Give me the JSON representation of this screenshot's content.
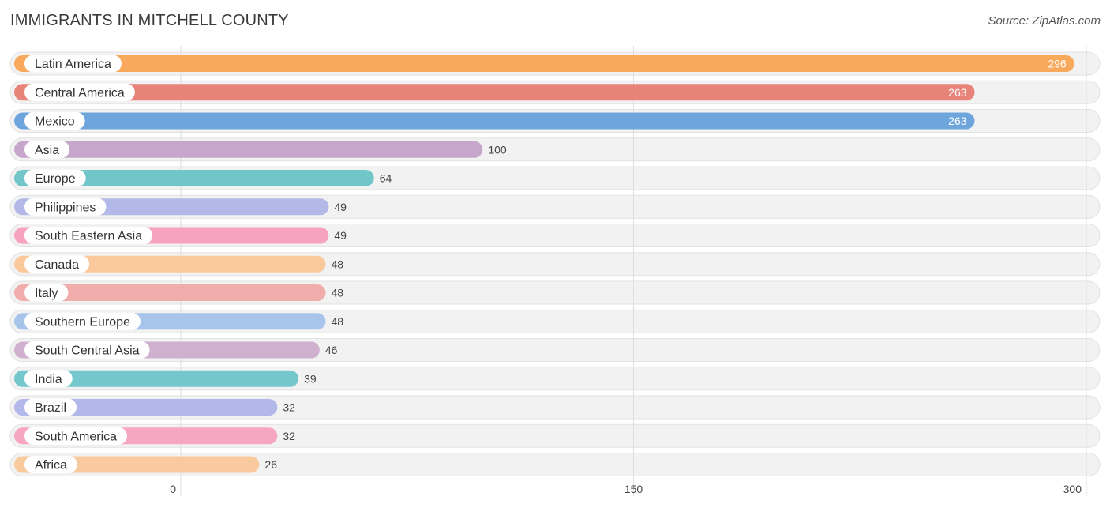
{
  "header": {
    "title": "IMMIGRANTS IN MITCHELL COUNTY",
    "source": "Source: ZipAtlas.com"
  },
  "chart_data": {
    "type": "bar",
    "orientation": "horizontal",
    "title": "IMMIGRANTS IN MITCHELL COUNTY",
    "categories": [
      "Latin America",
      "Central America",
      "Mexico",
      "Asia",
      "Europe",
      "Philippines",
      "South Eastern Asia",
      "Canada",
      "Italy",
      "Southern Europe",
      "South Central Asia",
      "India",
      "Brazil",
      "South America",
      "Africa"
    ],
    "values": [
      296,
      263,
      263,
      100,
      64,
      49,
      49,
      48,
      48,
      48,
      46,
      39,
      32,
      32,
      26
    ],
    "colors": [
      "#f9a95b",
      "#e8837a",
      "#6fa5dd",
      "#c7a6cb",
      "#71c6c9",
      "#b2b9e9",
      "#f6a3bf",
      "#f9c99c",
      "#f0adac",
      "#a7c4eb",
      "#cfb1cf",
      "#73c7cd",
      "#b3b8ea",
      "#f6a6c0",
      "#f9ca9e"
    ],
    "xticks": [
      0,
      150,
      300
    ],
    "xlim": [
      0,
      300
    ],
    "grid": true,
    "xlabel": "",
    "ylabel": ""
  }
}
